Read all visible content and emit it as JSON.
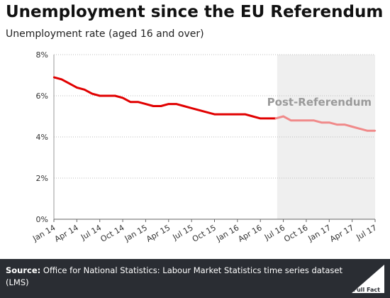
{
  "title": "Unemployment since the EU Referendum",
  "subtitle": "Unemployment rate (aged 16 and over)",
  "region_label": "Post-Referendum",
  "source_label": "Source:",
  "source_text": "Office for National Statistics: Labour Market Statistics time series dataset (LMS)",
  "logo_text": "Full Fact",
  "colors": {
    "pre": "#e10000",
    "post": "#f08a8a",
    "region_bg": "#efefef",
    "footer_bg": "#2a2d33"
  },
  "chart_data": {
    "type": "line",
    "title": "Unemployment since the EU Referendum",
    "ylabel": "Unemployment rate (aged 16 and over)",
    "xlabel": "",
    "ylim": [
      0,
      8
    ],
    "y_ticks": [
      "0%",
      "2%",
      "4%",
      "6%",
      "8%"
    ],
    "x_tick_labels": [
      "Jan 14",
      "Apr 14",
      "Jul 14",
      "Oct 14",
      "Jan 15",
      "Apr 15",
      "Jul 15",
      "Oct 15",
      "Jan 16",
      "Apr 16",
      "Jul 16",
      "Oct 16",
      "Jan 17",
      "Apr 17",
      "Jul 17"
    ],
    "grid": "horizontal",
    "highlight_region": {
      "label": "Post-Referendum",
      "from": "Jun 16",
      "to": "Jul 17"
    },
    "x": [
      "Jan 14",
      "Feb 14",
      "Mar 14",
      "Apr 14",
      "May 14",
      "Jun 14",
      "Jul 14",
      "Aug 14",
      "Sep 14",
      "Oct 14",
      "Nov 14",
      "Dec 14",
      "Jan 15",
      "Feb 15",
      "Mar 15",
      "Apr 15",
      "May 15",
      "Jun 15",
      "Jul 15",
      "Aug 15",
      "Sep 15",
      "Oct 15",
      "Nov 15",
      "Dec 15",
      "Jan 16",
      "Feb 16",
      "Mar 16",
      "Apr 16",
      "May 16",
      "Jun 16",
      "Jul 16",
      "Aug 16",
      "Sep 16",
      "Oct 16",
      "Nov 16",
      "Dec 16",
      "Jan 17",
      "Feb 17",
      "Mar 17",
      "Apr 17",
      "May 17",
      "Jun 17",
      "Jul 17"
    ],
    "series": [
      {
        "values": [
          6.9,
          6.8,
          6.6,
          6.4,
          6.3,
          6.1,
          6.0,
          6.0,
          6.0,
          5.9,
          5.7,
          5.7,
          5.6,
          5.5,
          5.5,
          5.6,
          5.6,
          5.5,
          5.4,
          5.3,
          5.2,
          5.1,
          5.1,
          5.1,
          5.1,
          5.1,
          5.0,
          4.9,
          4.9,
          4.9,
          5.0,
          4.8,
          4.8,
          4.8,
          4.8,
          4.7,
          4.7,
          4.6,
          4.6,
          4.5,
          4.4,
          4.3,
          4.3
        ]
      }
    ]
  }
}
